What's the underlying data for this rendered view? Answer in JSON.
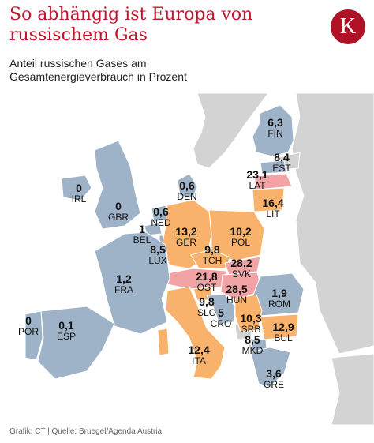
{
  "header": {
    "title": "So abhängig ist Europa von russischem Gas",
    "subtitle": "Anteil russischen Gases am Gesamtenergieverbrauch in Prozent",
    "logo_letter": "K"
  },
  "colors": {
    "sea": "#ffffff",
    "land_other": "#d3d3d3",
    "low": "#9fb3c8",
    "medium": "#f9b26b",
    "high": "#f1a3a5",
    "title": "#c0152a"
  },
  "map_data": {
    "countries": [
      {
        "code": "FIN",
        "value": "6,3",
        "category": "low"
      },
      {
        "code": "EST",
        "value": "8,4",
        "category": "low"
      },
      {
        "code": "LAT",
        "value": "23,1",
        "category": "high"
      },
      {
        "code": "LIT",
        "value": "16,4",
        "category": "medium"
      },
      {
        "code": "DEN",
        "value": "0,6",
        "category": "low"
      },
      {
        "code": "IRL",
        "value": "0",
        "category": "low"
      },
      {
        "code": "GBR",
        "value": "0",
        "category": "low"
      },
      {
        "code": "NED",
        "value": "0,6",
        "category": "low"
      },
      {
        "code": "BEL",
        "value": "1",
        "category": "low"
      },
      {
        "code": "LUX",
        "value": "8,5",
        "category": "low"
      },
      {
        "code": "GER",
        "value": "13,2",
        "category": "medium"
      },
      {
        "code": "POL",
        "value": "10,2",
        "category": "medium"
      },
      {
        "code": "TCH",
        "value": "9,8",
        "category": "medium"
      },
      {
        "code": "SVK",
        "value": "28,2",
        "category": "high"
      },
      {
        "code": "ÖST",
        "value": "21,8",
        "category": "high"
      },
      {
        "code": "HUN",
        "value": "28,5",
        "category": "high"
      },
      {
        "code": "FRA",
        "value": "1,2",
        "category": "low"
      },
      {
        "code": "SLO",
        "value": "9,8",
        "category": "medium"
      },
      {
        "code": "CRO",
        "value": "5",
        "category": "low"
      },
      {
        "code": "ROM",
        "value": "1,9",
        "category": "low"
      },
      {
        "code": "SRB",
        "value": "10,3",
        "category": "medium"
      },
      {
        "code": "BUL",
        "value": "12,9",
        "category": "medium"
      },
      {
        "code": "POR",
        "value": "0",
        "category": "low"
      },
      {
        "code": "ESP",
        "value": "0,1",
        "category": "low"
      },
      {
        "code": "ITA",
        "value": "12,4",
        "category": "medium"
      },
      {
        "code": "MKD",
        "value": "8,5",
        "category": "low"
      },
      {
        "code": "GRE",
        "value": "3,6",
        "category": "low"
      }
    ]
  },
  "footer": {
    "source": "Grafik: CT | Quelle: Bruegel/Agenda Austria"
  }
}
